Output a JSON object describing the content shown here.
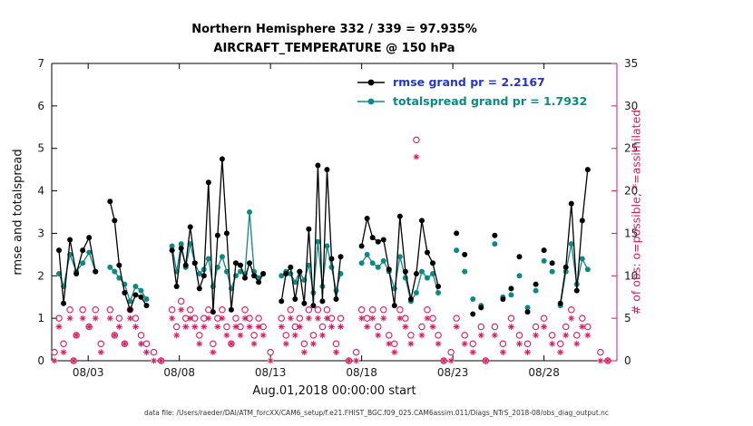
{
  "chart_data": {
    "type": "line",
    "title": "Northern Hemisphere 332 / 339 = 97.935%",
    "subtitle": "AIRCRAFT_TEMPERATURE @ 150 hPa",
    "xlabel": "Aug.01,2018 00:00:00 start",
    "ylabel_left": "rmse and totalspread",
    "ylabel_right": "# of obs: o=possible; *=assimilated",
    "caption": "data file: /Users/raeder/DAI/ATM_forcXX/CAM6_setup/f.e21.FHIST_BGC.f09_025.CAM6assim.011/Diags_NTrS_2018-08/obs_diag_output.nc",
    "legend": [
      {
        "label": "rmse grand pr = 2.2167",
        "line_color": "#000000",
        "text_color": "#2336cc"
      },
      {
        "label": "totalspread grand pr = 1.7932",
        "line_color": "#0b8a85",
        "text_color": "#0b8a85"
      }
    ],
    "colors": {
      "rmse": "#000000",
      "totalspread": "#0b8a85",
      "obs": "#d81b60",
      "axis": "#000000",
      "text": "#1a1a1a"
    },
    "xlim": [
      1,
      32
    ],
    "ylim_left": [
      0,
      7
    ],
    "yticks_left": [
      0,
      1,
      2,
      3,
      4,
      5,
      6,
      7
    ],
    "ylim_right": [
      0,
      35
    ],
    "yticks_right": [
      0,
      5,
      10,
      15,
      20,
      25,
      30,
      35
    ],
    "x_ticks": [
      {
        "t": 3,
        "label": "08/03"
      },
      {
        "t": 8,
        "label": "08/08"
      },
      {
        "t": 13,
        "label": "08/13"
      },
      {
        "t": 18,
        "label": "08/18"
      },
      {
        "t": 23,
        "label": "08/23"
      },
      {
        "t": 28,
        "label": "08/28"
      }
    ],
    "gap_threshold_days": 0.42,
    "series": {
      "t": [
        1.4,
        1.65,
        2.0,
        2.35,
        2.7,
        3.05,
        3.4,
        4.2,
        4.45,
        4.7,
        5.0,
        5.3,
        5.6,
        5.9,
        6.2,
        7.6,
        7.85,
        8.1,
        8.35,
        8.6,
        8.85,
        9.1,
        9.35,
        9.6,
        9.85,
        10.1,
        10.35,
        10.6,
        10.85,
        11.1,
        11.35,
        11.6,
        11.85,
        12.1,
        12.35,
        12.6,
        13.6,
        13.85,
        14.1,
        14.35,
        14.6,
        14.85,
        15.1,
        15.35,
        15.6,
        15.85,
        16.1,
        16.35,
        16.6,
        16.85,
        18.0,
        18.3,
        18.6,
        18.9,
        19.2,
        19.5,
        19.8,
        20.1,
        20.4,
        20.7,
        21.0,
        21.3,
        21.6,
        21.9,
        22.2,
        23.2,
        23.65,
        24.1,
        24.55,
        25.3,
        25.75,
        26.2,
        26.65,
        27.1,
        27.55,
        28.0,
        28.45,
        28.9,
        29.2,
        29.5,
        29.8,
        30.1,
        30.4
      ],
      "rmse": [
        2.6,
        1.35,
        2.85,
        2.05,
        2.6,
        2.9,
        2.1,
        3.75,
        3.3,
        2.25,
        1.6,
        1.2,
        1.55,
        1.5,
        1.3,
        2.6,
        1.75,
        2.65,
        2.25,
        3.15,
        2.3,
        1.7,
        2.0,
        4.2,
        1.15,
        2.95,
        4.75,
        3.0,
        1.2,
        2.3,
        2.25,
        1.95,
        2.3,
        2.0,
        1.85,
        2.05,
        1.4,
        2.05,
        2.2,
        1.45,
        2.1,
        1.35,
        3.1,
        1.3,
        4.6,
        1.4,
        4.5,
        2.4,
        1.45,
        2.45,
        2.7,
        3.35,
        2.9,
        2.8,
        2.85,
        2.15,
        1.3,
        3.4,
        2.1,
        1.45,
        2.05,
        3.3,
        2.55,
        2.3,
        1.75,
        3.0,
        2.5,
        1.1,
        1.25,
        2.95,
        1.45,
        1.7,
        2.45,
        1.15,
        1.8,
        2.6,
        2.3,
        1.35,
        2.2,
        3.7,
        1.65,
        3.3,
        4.5
      ],
      "totalspread": [
        2.05,
        1.75,
        2.5,
        2.1,
        2.3,
        2.55,
        2.1,
        2.2,
        2.1,
        1.95,
        1.8,
        1.4,
        1.75,
        1.65,
        1.45,
        2.7,
        2.1,
        2.75,
        2.2,
        2.75,
        2.3,
        2.05,
        2.15,
        2.4,
        1.75,
        2.2,
        2.45,
        2.1,
        1.7,
        2.0,
        2.1,
        2.05,
        3.5,
        2.1,
        1.95,
        2.05,
        2.0,
        2.1,
        2.05,
        1.85,
        2.1,
        1.9,
        2.25,
        1.6,
        2.8,
        1.75,
        2.7,
        2.2,
        1.65,
        2.05,
        2.3,
        2.5,
        2.3,
        2.2,
        2.35,
        2.1,
        1.7,
        2.45,
        1.95,
        1.4,
        1.6,
        2.1,
        1.95,
        2.05,
        1.6,
        2.6,
        2.1,
        1.45,
        1.3,
        2.75,
        1.5,
        1.55,
        2.0,
        1.25,
        1.65,
        2.35,
        2.1,
        1.3,
        2.1,
        2.75,
        1.8,
        2.4,
        2.15
      ],
      "obs_possible": [
        5,
        2,
        6,
        3,
        6,
        4,
        6,
        6,
        3,
        5,
        2,
        6,
        5,
        3,
        2,
        6,
        4,
        7,
        5,
        6,
        5,
        3,
        5,
        6,
        2,
        5,
        6,
        4,
        2,
        5,
        4,
        6,
        5,
        3,
        5,
        4,
        5,
        3,
        6,
        4,
        5,
        2,
        6,
        3,
        6,
        4,
        6,
        5,
        2,
        5,
        6,
        5,
        6,
        4,
        6,
        3,
        2,
        6,
        5,
        3,
        26,
        4,
        6,
        5,
        3,
        5,
        3,
        2,
        4,
        4,
        2,
        5,
        3,
        2,
        4,
        5,
        3,
        2,
        4,
        6,
        3,
        5,
        4
      ],
      "obs_assimilated": [
        4,
        1,
        5,
        3,
        5,
        4,
        5,
        5,
        3,
        4,
        2,
        5,
        4,
        2,
        1,
        5,
        3,
        6,
        4,
        5,
        4,
        2,
        4,
        5,
        1,
        4,
        5,
        3,
        2,
        4,
        3,
        5,
        4,
        2,
        4,
        3,
        4,
        2,
        5,
        3,
        4,
        1,
        5,
        2,
        5,
        3,
        5,
        4,
        1,
        4,
        5,
        4,
        5,
        3,
        5,
        2,
        1,
        5,
        4,
        2,
        24,
        3,
        5,
        4,
        2,
        4,
        2,
        1,
        3,
        3,
        1,
        4,
        2,
        1,
        3,
        4,
        2,
        1,
        3,
        5,
        2,
        4,
        3
      ]
    },
    "obs_extra": {
      "t": [
        1.15,
        2.2,
        3.7,
        6.6,
        7.0,
        13.0,
        17.3,
        17.7,
        22.5,
        22.9,
        24.8,
        31.1,
        31.5
      ],
      "possible": [
        1,
        0,
        2,
        1,
        0,
        1,
        0,
        1,
        0,
        1,
        0,
        1,
        0
      ],
      "assimilated": [
        0,
        0,
        1,
        0,
        0,
        0,
        0,
        0,
        0,
        0,
        0,
        0,
        0
      ]
    }
  }
}
